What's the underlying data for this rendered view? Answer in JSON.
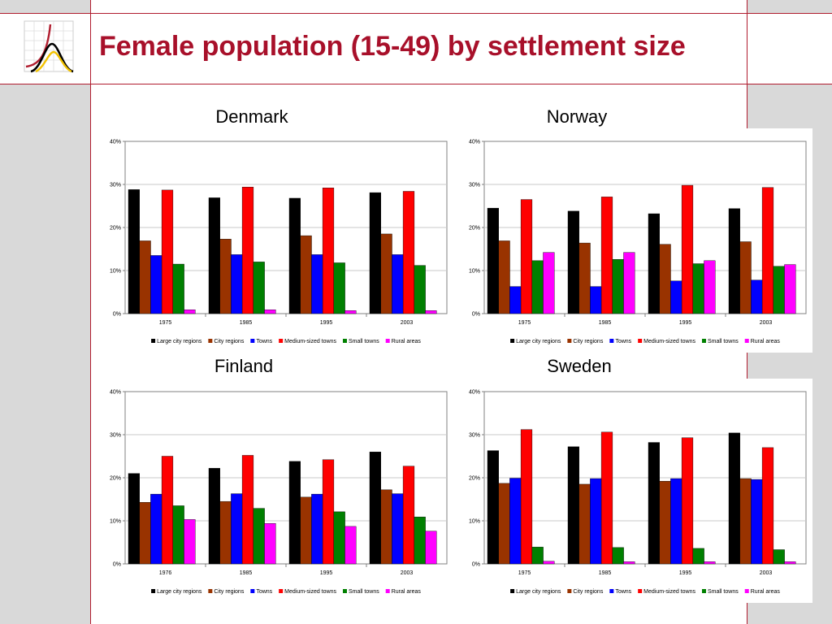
{
  "slide": {
    "title": "Female population (15-49) by settlement size"
  },
  "colors": {
    "accent": "#a8102a",
    "series": [
      "#000000",
      "#993300",
      "#0000ff",
      "#ff0000",
      "#008000",
      "#ff00ff"
    ]
  },
  "chart_data": [
    {
      "type": "bar",
      "title": "Denmark",
      "categories": [
        "1975",
        "1985",
        "1995",
        "2003"
      ],
      "ylim": [
        0,
        40
      ],
      "yticks": [
        "0%",
        "10%",
        "20%",
        "30%",
        "40%"
      ],
      "grid": true,
      "legend": "bottom",
      "series": [
        {
          "name": "Large city regions",
          "values": [
            28.8,
            26.9,
            26.8,
            28.1
          ]
        },
        {
          "name": "City regions",
          "values": [
            16.9,
            17.3,
            18.1,
            18.5
          ]
        },
        {
          "name": "Towns",
          "values": [
            13.5,
            13.7,
            13.7,
            13.7
          ]
        },
        {
          "name": "Medium-sized towns",
          "values": [
            28.7,
            29.4,
            29.2,
            28.4
          ]
        },
        {
          "name": "Small towns",
          "values": [
            11.5,
            12.0,
            11.8,
            11.2
          ]
        },
        {
          "name": "Rural areas",
          "values": [
            0.9,
            0.9,
            0.7,
            0.7
          ]
        }
      ]
    },
    {
      "type": "bar",
      "title": "Norway",
      "categories": [
        "1975",
        "1985",
        "1995",
        "2003"
      ],
      "ylim": [
        0,
        40
      ],
      "yticks": [
        "0%",
        "10%",
        "20%",
        "30%",
        "40%"
      ],
      "grid": true,
      "legend": "bottom",
      "series": [
        {
          "name": "Large city regions",
          "values": [
            24.5,
            23.8,
            23.2,
            24.4
          ]
        },
        {
          "name": "City regions",
          "values": [
            16.9,
            16.4,
            16.1,
            16.7
          ]
        },
        {
          "name": "Towns",
          "values": [
            6.3,
            6.3,
            7.6,
            7.8
          ]
        },
        {
          "name": "Medium-sized towns",
          "values": [
            26.5,
            27.1,
            29.8,
            29.3
          ]
        },
        {
          "name": "Small towns",
          "values": [
            12.3,
            12.6,
            11.6,
            11.0
          ]
        },
        {
          "name": "Rural areas",
          "values": [
            14.2,
            14.2,
            12.3,
            11.4
          ]
        }
      ]
    },
    {
      "type": "bar",
      "title": "Finland",
      "categories": [
        "1976",
        "1985",
        "1995",
        "2003"
      ],
      "ylim": [
        0,
        40
      ],
      "yticks": [
        "0%",
        "10%",
        "20%",
        "30%",
        "40%"
      ],
      "grid": true,
      "legend": "bottom",
      "series": [
        {
          "name": "Large city regions",
          "values": [
            21.0,
            22.2,
            23.8,
            26.0
          ]
        },
        {
          "name": "City regions",
          "values": [
            14.3,
            14.5,
            15.5,
            17.2
          ]
        },
        {
          "name": "Towns",
          "values": [
            16.2,
            16.3,
            16.2,
            16.3
          ]
        },
        {
          "name": "Medium-sized towns",
          "values": [
            25.0,
            25.2,
            24.2,
            22.7
          ]
        },
        {
          "name": "Small towns",
          "values": [
            13.5,
            12.9,
            12.1,
            10.9
          ]
        },
        {
          "name": "Rural areas",
          "values": [
            10.3,
            9.4,
            8.7,
            7.6
          ]
        }
      ]
    },
    {
      "type": "bar",
      "title": "Sweden",
      "categories": [
        "1975",
        "1985",
        "1995",
        "2003"
      ],
      "ylim": [
        0,
        40
      ],
      "yticks": [
        "0%",
        "10%",
        "20%",
        "30%",
        "40%"
      ],
      "grid": true,
      "legend": "bottom",
      "series": [
        {
          "name": "Large city regions",
          "values": [
            26.3,
            27.2,
            28.2,
            30.4
          ]
        },
        {
          "name": "City regions",
          "values": [
            18.7,
            18.5,
            19.2,
            19.8
          ]
        },
        {
          "name": "Towns",
          "values": [
            19.9,
            19.8,
            19.8,
            19.6
          ]
        },
        {
          "name": "Medium-sized towns",
          "values": [
            31.2,
            30.6,
            29.3,
            27.0
          ]
        },
        {
          "name": "Small towns",
          "values": [
            3.9,
            3.8,
            3.6,
            3.3
          ]
        },
        {
          "name": "Rural areas",
          "values": [
            0.6,
            0.5,
            0.5,
            0.5
          ]
        }
      ]
    }
  ]
}
